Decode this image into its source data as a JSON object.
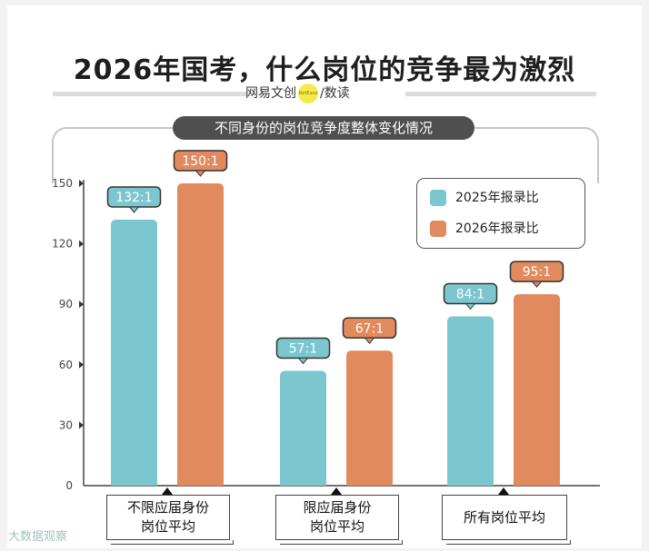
{
  "title": "2026年国考，什么岗位的竞争最为激烈",
  "brand": {
    "left": "网易文创",
    "mark": "NetEase",
    "separator": "/",
    "right": "数读"
  },
  "subtitle": "不同身份的岗位竞争度整体变化情况",
  "watermark": "大数据观察",
  "colors": {
    "y2025": "#7cc6cf",
    "y2026": "#e08a5e"
  },
  "chart_data": {
    "type": "bar",
    "title": "不同身份的岗位竞争度整体变化情况",
    "categories": [
      "不限应届身份\n岗位平均",
      "限应届身份\n岗位平均",
      "所有岗位平均"
    ],
    "series": [
      {
        "name": "2025年报录比",
        "values": [
          132,
          57,
          84
        ],
        "labels": [
          "132:1",
          "57:1",
          "84:1"
        ]
      },
      {
        "name": "2026年报录比",
        "values": [
          150,
          67,
          95
        ],
        "labels": [
          "150:1",
          "67:1",
          "95:1"
        ]
      }
    ],
    "yticks": [
      0,
      30,
      60,
      90,
      120,
      150
    ],
    "ylim": [
      0,
      150
    ],
    "legend_position": "top-right",
    "grid": false
  }
}
